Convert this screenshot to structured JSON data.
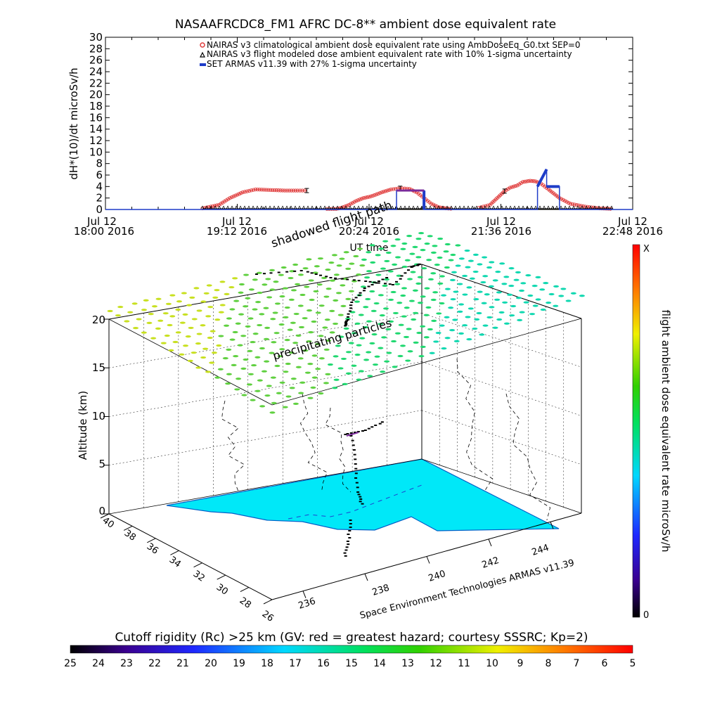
{
  "top_chart": {
    "title": "NASAAFRCDC8_FM1 AFRC DC-8** ambient dose equivalent rate",
    "ylabel": "dH*(10)/dt microSv/h",
    "xlabel": "UT time",
    "legend": [
      "NAIRAS v3 climatological ambient dose equivalent rate using AmbDoseEq_G0.txt SEP=0",
      "NAIRAS v3 flight modeled dose ambient equivalent rate with 10% 1-sigma uncertainty",
      "SET ARMAS v11.39 with 27% 1-sigma uncertainty"
    ],
    "x_ticks": [
      {
        "l1": "Jul 12",
        "l2": "18:00 2016"
      },
      {
        "l1": "Jul 12",
        "l2": "19:12 2016"
      },
      {
        "l1": "Jul 12",
        "l2": "20:24 2016"
      },
      {
        "l1": "Jul 12",
        "l2": "21:36 2016"
      },
      {
        "l1": "Jul 12",
        "l2": "22:48 2016"
      }
    ]
  },
  "chart_data": [
    {
      "type": "line",
      "title": "NASAAFRCDC8_FM1 AFRC DC-8** ambient dose equivalent rate",
      "xlabel": "UT time",
      "ylabel": "dH*(10)/dt microSv/h",
      "x_unit": "UT time, 12 Jul 2016",
      "xlim": [
        "18:00",
        "22:48"
      ],
      "ylim": [
        0,
        30
      ],
      "y_ticks": [
        0,
        2,
        4,
        6,
        8,
        10,
        12,
        14,
        16,
        18,
        20,
        22,
        24,
        26,
        28,
        30
      ],
      "series": [
        {
          "name": "NAIRAS v3 climatological ambient dose equivalent rate using AmbDoseEq_G0.txt SEP=0",
          "color": "#e03c3c",
          "x": [
            "18:53",
            "19:02",
            "19:08",
            "19:15",
            "19:22",
            "19:30",
            "19:38",
            "19:45",
            "19:50",
            "20:01",
            "20:06",
            "20:09",
            "20:13",
            "20:17",
            "20:21",
            "20:24",
            "20:27",
            "20:31",
            "20:34",
            "20:36",
            "20:41",
            "20:46",
            "20:50",
            "20:54",
            "20:58",
            "21:02",
            "21:06",
            "21:10",
            "21:24",
            "21:30",
            "21:34",
            "21:38",
            "21:41",
            "21:45",
            "21:48",
            "21:52",
            "21:55",
            "21:58",
            "22:02",
            "22:08",
            "22:14",
            "22:22",
            "22:30",
            "22:37"
          ],
          "values": [
            0.2,
            0.8,
            2.0,
            3.0,
            3.5,
            3.4,
            3.3,
            3.3,
            3.3,
            0.1,
            0.1,
            0.3,
            0.8,
            1.5,
            2.0,
            2.2,
            2.5,
            3.0,
            3.3,
            3.5,
            3.7,
            3.6,
            3.0,
            2.0,
            1.0,
            0.4,
            0.2,
            0.1,
            0.3,
            0.8,
            2.0,
            3.2,
            3.8,
            4.2,
            4.8,
            5.0,
            4.9,
            4.5,
            3.5,
            2.0,
            1.0,
            0.5,
            0.2,
            0.1
          ]
        },
        {
          "name": "NAIRAS v3 flight modeled dose ambient equivalent rate with 10% 1-sigma uncertainty",
          "color": "#000000",
          "x": [
            "18:53",
            "22:37"
          ],
          "values": [
            0.1,
            0.1
          ]
        },
        {
          "name": "SET ARMAS v11.39 with 27% 1-sigma uncertainty",
          "color": "#1e3cc8",
          "x": [
            "18:00",
            "20:39",
            "20:39",
            "20:54",
            "20:54",
            "21:56",
            "21:56",
            "22:01",
            "22:01",
            "22:08",
            "22:08",
            "22:48"
          ],
          "values": [
            0,
            0,
            3.3,
            3.3,
            0,
            0,
            4.0,
            7.0,
            4.0,
            4.0,
            0,
            0
          ]
        }
      ]
    },
    {
      "type": "scatter",
      "xlabel": "Space Environment Technologies ARMAS v11.39",
      "ylabel": "Altitude (km)",
      "z_ticks": [
        0,
        5,
        10,
        15,
        20
      ],
      "lon_ticks": [
        236,
        238,
        240,
        242,
        244
      ],
      "lat_ticks": [
        40,
        38,
        36,
        34,
        32,
        30,
        28,
        26
      ],
      "annotations": [
        "shadowed flight path",
        "precipitating particles"
      ],
      "colorbar": {
        "label": "flight ambient dose equivalent rate microSv/h",
        "max_label": "X",
        "min_label": "0"
      }
    },
    {
      "type": "heatmap",
      "title": "Cutoff rigidity (Rc) >25 km (GV: red = greatest hazard; courtesy SSSRC; Kp=2)",
      "colorbar_ticks": [
        25,
        24,
        23,
        22,
        21,
        20,
        19,
        18,
        17,
        16,
        15,
        14,
        13,
        12,
        11,
        10,
        9,
        8,
        7,
        6,
        5
      ]
    }
  ]
}
